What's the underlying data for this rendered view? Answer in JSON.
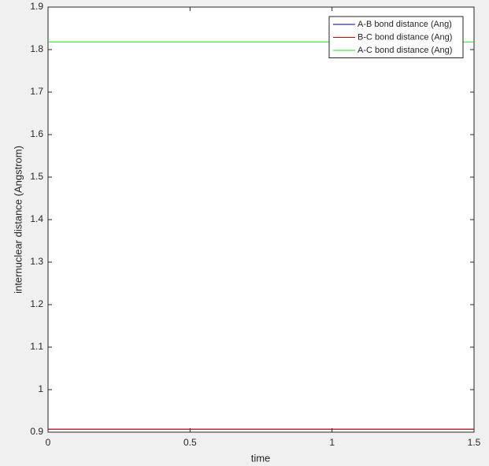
{
  "chart_data": {
    "type": "line",
    "x": [
      0,
      0.5,
      1,
      1.5
    ],
    "series": [
      {
        "name": "A-B bond distance (Ang)",
        "color": "#000080",
        "values": [
          0.907,
          0.907,
          0.907,
          0.907
        ]
      },
      {
        "name": "B-C bond distance (Ang)",
        "color": "#d00000",
        "values": [
          0.907,
          0.907,
          0.907,
          0.907
        ]
      },
      {
        "name": "A-C bond distance (Ang)",
        "color": "#22dd22",
        "values": [
          1.818,
          1.818,
          1.818,
          1.818
        ]
      }
    ],
    "xlabel": "time",
    "ylabel": "internuclear distance (Angstrom)",
    "xlim": [
      0,
      1.5
    ],
    "xticks": [
      0,
      0.5,
      1,
      1.5
    ],
    "ylim": [
      0.9,
      1.9
    ],
    "yticks": [
      0.9,
      1,
      1.1,
      1.2,
      1.3,
      1.4,
      1.5,
      1.6,
      1.7,
      1.8,
      1.9
    ],
    "legend": "top-right"
  }
}
